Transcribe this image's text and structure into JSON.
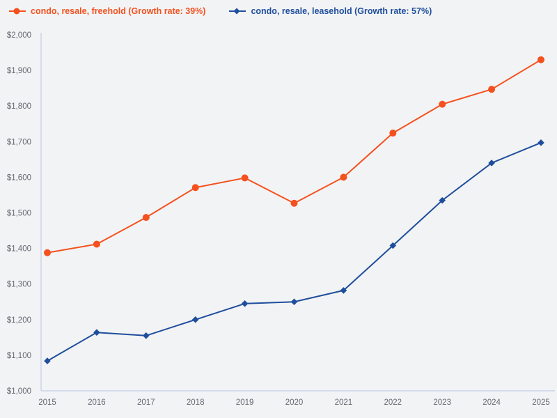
{
  "chart_data": {
    "type": "line",
    "title": "",
    "xlabel": "",
    "ylabel": "",
    "categories": [
      "2015",
      "2016",
      "2017",
      "2018",
      "2019",
      "2020",
      "2021",
      "2022",
      "2023",
      "2024",
      "2025"
    ],
    "series": [
      {
        "id": "freehold",
        "name": "condo, resale, freehold (Growth rate: 39%)",
        "color": "#f4511e",
        "marker": "circle",
        "values": [
          1388,
          1412,
          1487,
          1571,
          1598,
          1527,
          1600,
          1724,
          1805,
          1847,
          1930
        ]
      },
      {
        "id": "leasehold",
        "name": "condo, resale, leasehold (Growth rate: 57%)",
        "color": "#1e4e9c",
        "marker": "diamond",
        "values": [
          1084,
          1164,
          1155,
          1200,
          1245,
          1250,
          1282,
          1408,
          1535,
          1640,
          1697
        ]
      }
    ],
    "ylim": [
      1000,
      2000
    ],
    "ytick_step": 100,
    "ytick_prefix": "$",
    "ytick_labels": [
      "$1,000",
      "$1,100",
      "$1,200",
      "$1,300",
      "$1,400",
      "$1,500",
      "$1,600",
      "$1,700",
      "$1,800",
      "$1,900",
      "$2,000"
    ],
    "grid": false,
    "legend_position": "top-left",
    "colors": {
      "background": "#f2f3f5",
      "axis": "#b6c4e2",
      "tick_text": "#63676f"
    }
  }
}
